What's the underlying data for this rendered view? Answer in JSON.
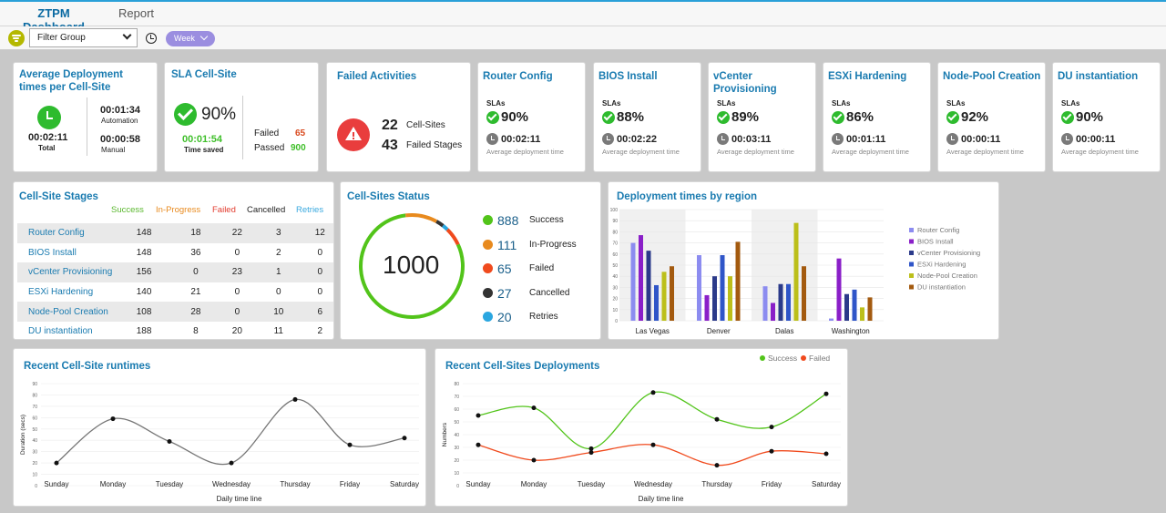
{
  "tabs": [
    {
      "label": "ZTPM Dashboard"
    },
    {
      "label": "Report"
    }
  ],
  "filter": {
    "group_label": "Filter Group",
    "period": "Week"
  },
  "avg_deploy": {
    "title": "Average Deployment times per Cell-Site",
    "total_time": "00:02:11",
    "total_label": "Total",
    "automation_time": "00:01:34",
    "automation_label": "Automation",
    "manual_time": "00:00:58",
    "manual_label": "Manual"
  },
  "sla": {
    "title": "SLA Cell-Site",
    "percent": "90%",
    "time_saved": "00:01:54",
    "time_saved_label": "Time saved",
    "failed_label": "Failed",
    "failed_value": "65",
    "passed_label": "Passed",
    "passed_value": "900"
  },
  "failed_activities": {
    "title": "Failed Activities",
    "cell_sites": "22",
    "cell_sites_label": "Cell-Sites",
    "failed_stages": "43",
    "failed_stages_label": "Failed Stages"
  },
  "sla_cards": [
    {
      "title": "Router Config",
      "sla_label": "SLAs",
      "percent": "90%",
      "time": "00:02:11",
      "time_label": "Average deployment time"
    },
    {
      "title": "BIOS Install",
      "sla_label": "SLAs",
      "percent": "88%",
      "time": "00:02:22",
      "time_label": "Average deployment time"
    },
    {
      "title": "vCenter Provisioning",
      "sla_label": "SLAs",
      "percent": "89%",
      "time": "00:03:11",
      "time_label": "Average deployment time"
    },
    {
      "title": "ESXi Hardening",
      "sla_label": "SLAs",
      "percent": "86%",
      "time": "00:01:11",
      "time_label": "Average deployment time"
    },
    {
      "title": "Node-Pool Creation",
      "sla_label": "SLAs",
      "percent": "92%",
      "time": "00:00:11",
      "time_label": "Average deployment time"
    },
    {
      "title": "DU instantiation",
      "sla_label": "SLAs",
      "percent": "90%",
      "time": "00:00:11",
      "time_label": "Average deployment time"
    }
  ],
  "stages": {
    "title": "Cell-Site Stages",
    "headers": [
      "Success",
      "In-Progress",
      "Failed",
      "Cancelled",
      "Retries"
    ],
    "header_colors": [
      "#5bb82f",
      "#e88a1e",
      "#e23b2e",
      "#222222",
      "#3aa9df"
    ],
    "rows": [
      {
        "name": "Router Config",
        "values": [
          "148",
          "18",
          "22",
          "3",
          "12"
        ]
      },
      {
        "name": "BIOS Install",
        "values": [
          "148",
          "36",
          "0",
          "2",
          "0"
        ]
      },
      {
        "name": "vCenter Provisioning",
        "values": [
          "156",
          "0",
          "23",
          "1",
          "0"
        ]
      },
      {
        "name": "ESXi Hardening",
        "values": [
          "140",
          "21",
          "0",
          "0",
          "0"
        ]
      },
      {
        "name": "Node-Pool Creation",
        "values": [
          "108",
          "28",
          "0",
          "10",
          "6"
        ]
      },
      {
        "name": "DU instantiation",
        "values": [
          "188",
          "8",
          "20",
          "11",
          "2"
        ]
      }
    ]
  },
  "status": {
    "title": "Cell-Sites Status",
    "total": "1000",
    "items": [
      {
        "value": "888",
        "label": "Success",
        "color": "#52c41a"
      },
      {
        "value": "111",
        "label": "In-Progress",
        "color": "#e88a1e"
      },
      {
        "value": "65",
        "label": "Failed",
        "color": "#f04a1d"
      },
      {
        "value": "27",
        "label": "Cancelled",
        "color": "#333333"
      },
      {
        "value": "20",
        "label": "Retries",
        "color": "#2aa6e0"
      }
    ]
  },
  "chart_data": [
    {
      "type": "bar",
      "title": "Deployment times by region",
      "categories": [
        "Las Vegas",
        "Denver",
        "Dalas",
        "Washington"
      ],
      "ylim": [
        0,
        100
      ],
      "yticks": [
        "0",
        "10",
        "20",
        "30",
        "40",
        "50",
        "60",
        "70",
        "80",
        "90",
        "100"
      ],
      "legend_position": "right",
      "series": [
        {
          "name": "Router Config",
          "color": "#8c8cf0",
          "values": [
            70,
            59,
            31,
            2
          ]
        },
        {
          "name": "BIOS Install",
          "color": "#8a1fc8",
          "values": [
            77,
            23,
            16,
            56
          ]
        },
        {
          "name": "vCenter Provisioning",
          "color": "#2b3a8a",
          "values": [
            63,
            40,
            33,
            24
          ]
        },
        {
          "name": "ESXi Hardening",
          "color": "#2f55c8",
          "values": [
            32,
            59,
            33,
            28
          ]
        },
        {
          "name": "Node-Pool Creation",
          "color": "#bcbf1a",
          "values": [
            44,
            40,
            88,
            12
          ]
        },
        {
          "name": "DU instantiation",
          "color": "#a35a0f",
          "values": [
            49,
            71,
            49,
            21
          ]
        }
      ]
    },
    {
      "type": "line",
      "title": "Recent Cell-Site runtimes",
      "xlabel": "Daily  time line",
      "ylabel": "Duration (secs)",
      "categories": [
        "Sunday",
        "Monday",
        "Tuesday",
        "Wednesday",
        "Thursday",
        "Friday",
        "Saturday"
      ],
      "ylim": [
        0,
        90
      ],
      "yticks": [
        "0",
        "10",
        "20",
        "30",
        "40",
        "50",
        "60",
        "70",
        "80",
        "90"
      ],
      "series": [
        {
          "color": "#777777",
          "values": [
            20,
            59,
            39,
            20,
            76,
            36,
            42
          ]
        }
      ]
    },
    {
      "type": "line",
      "title": "Recent Cell-Sites Deployments",
      "xlabel": "Daily  time line",
      "ylabel": "Numbers",
      "categories": [
        "Sunday",
        "Monday",
        "Tuesday",
        "Wednesday",
        "Thursday",
        "Friday",
        "Saturday"
      ],
      "ylim": [
        0,
        80
      ],
      "yticks": [
        "0",
        "10",
        "20",
        "30",
        "40",
        "50",
        "60",
        "70",
        "80"
      ],
      "legend_position": "top-right",
      "series": [
        {
          "name": "Success",
          "color": "#52c41a",
          "values": [
            55,
            61,
            29,
            73,
            52,
            46,
            72
          ]
        },
        {
          "name": "Failed",
          "color": "#f04a1d",
          "values": [
            32,
            20,
            26,
            32,
            16,
            27,
            25
          ]
        }
      ]
    }
  ]
}
